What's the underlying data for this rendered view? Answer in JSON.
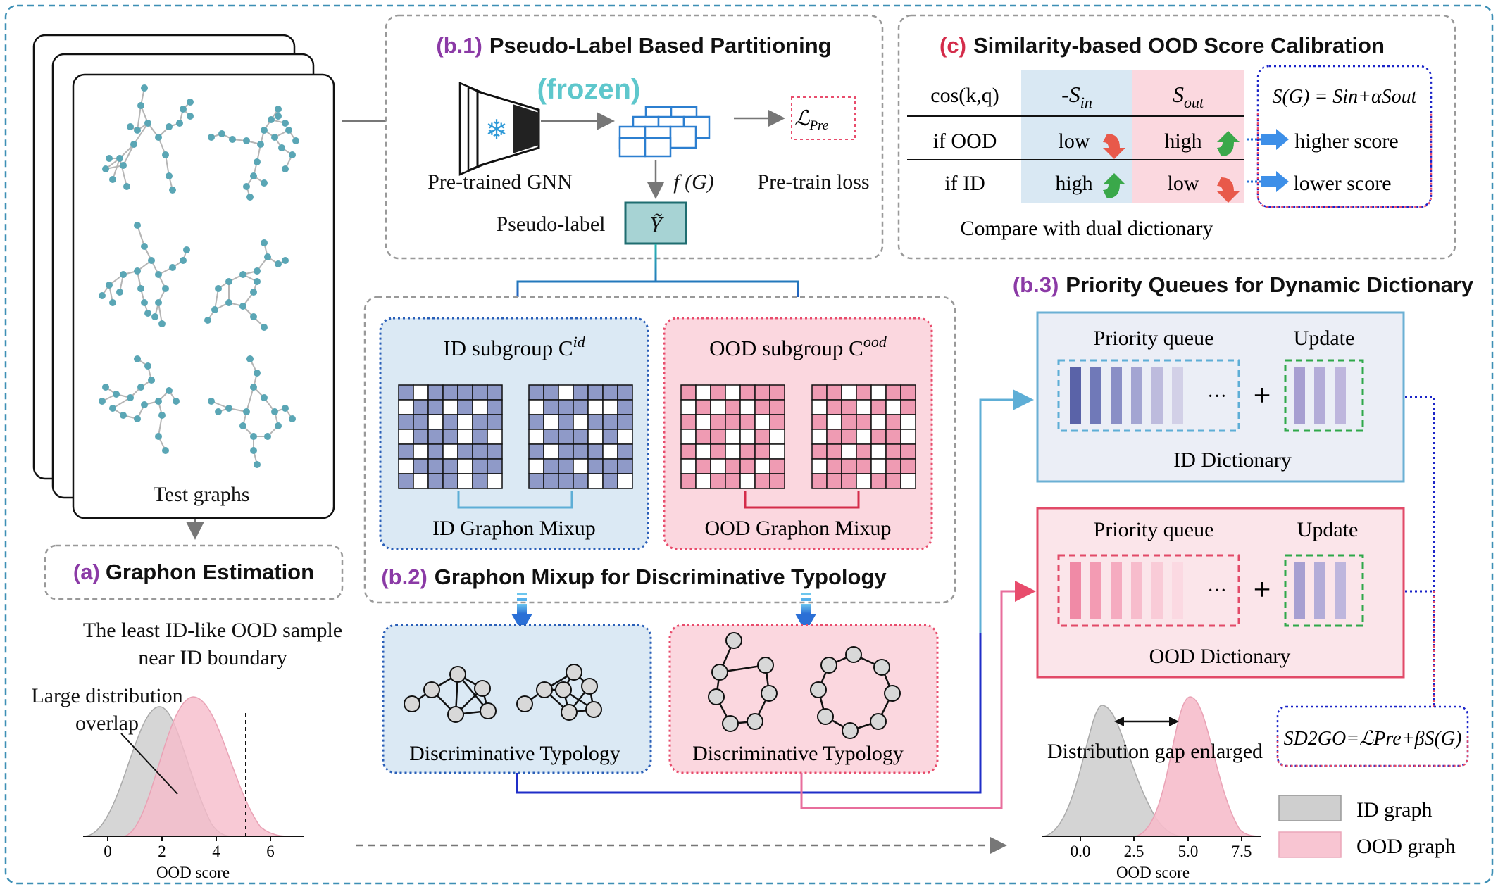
{
  "panel_a": {
    "stack_caption": "Test graphs",
    "tag": "(a)",
    "title": "Graphon Estimation",
    "note_line1": "The least ID-like OOD sample",
    "note_line2": "near ID boundary",
    "overlap_line1": "Large distribution",
    "overlap_line2": "overlap",
    "axis_label": "OOD score",
    "ticks": [
      "0",
      "2",
      "4",
      "6"
    ]
  },
  "panel_b1": {
    "tag": "(b.1)",
    "title": "Pseudo-Label Based Partitioning",
    "frozen": "(frozen)",
    "gnn_label": "Pre-trained GNN",
    "feature_label": "f (G)",
    "loss_symbol": "ℒ",
    "loss_sub": "Pre",
    "loss_label": "Pre-train loss",
    "pseudo_label": "Pseudo-label",
    "pseudo_symbol": "Ỹ"
  },
  "panel_c": {
    "tag": "(c)",
    "title": "Similarity-based OOD Score Calibration",
    "header_cos": "cos(k,q)",
    "header_sin_main": "-S",
    "header_sin_sub": "in",
    "header_sout_main": "S",
    "header_sout_sub": "out",
    "row_ood": "if OOD",
    "row_id": "if ID",
    "ood_sin": "low",
    "ood_sout": "high",
    "id_sin": "high",
    "id_sout": "low",
    "formula": "S(G) = Sin+αSout",
    "higher": "higher score",
    "lower": "lower score",
    "caption": "Compare with dual dictionary"
  },
  "panel_b2": {
    "tag": "(b.2)",
    "title": "Graphon Mixup for Discriminative Typology",
    "id_subgroup": "ID subgroup C",
    "id_sup": "id",
    "ood_subgroup": "OOD subgroup C",
    "ood_sup": "ood",
    "id_mixup": "ID Graphon Mixup",
    "ood_mixup": "OOD Graphon Mixup",
    "typology": "Discriminative Typology"
  },
  "panel_b3": {
    "tag": "(b.3)",
    "title": "Priority Queues for Dynamic Dictionary",
    "queue_label": "Priority queue",
    "update_label": "Update",
    "ellipsis": "···",
    "plus": "+",
    "id_dict": "ID Dictionary",
    "ood_dict": "OOD Dictionary",
    "score_formula": "SD2GO=ℒPre+βS(G)",
    "gap_label": "Distribution gap enlarged",
    "axis_label": "OOD score",
    "ticks": [
      "0.0",
      "2.5",
      "5.0",
      "7.5"
    ],
    "legend_id": "ID graph",
    "legend_ood": "OOD graph"
  },
  "colors": {
    "teal": "#5aa6b5",
    "blue_box": "#dbe9f4",
    "pink_box": "#fbd7df",
    "id_grid": "#8f9ac8",
    "ood_grid": "#ef9bb3",
    "frame": "#3d8fb5",
    "purple_tag": "#8b3aa6"
  }
}
